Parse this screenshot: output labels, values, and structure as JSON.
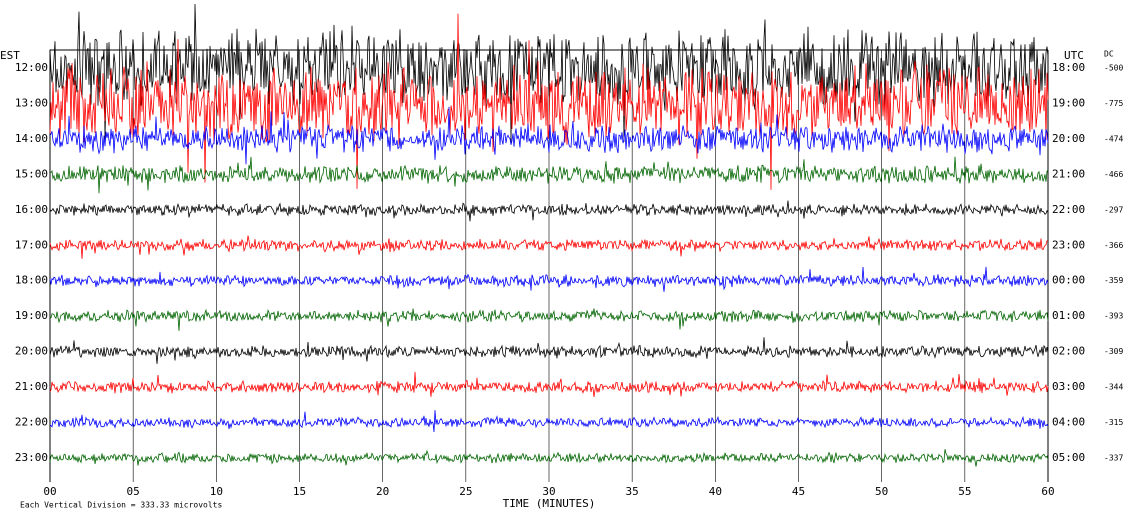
{
  "plot": {
    "left_title": "EST",
    "right_title": "UTC",
    "right_extra": "DC",
    "rows": [
      {
        "est": "12:00",
        "utc": "18:00",
        "dc": -500,
        "color": "#000000"
      },
      {
        "est": "13:00",
        "utc": "19:00",
        "dc": -775,
        "color": "#ff0000"
      },
      {
        "est": "14:00",
        "utc": "20:00",
        "dc": -474,
        "color": "#0000ff"
      },
      {
        "est": "15:00",
        "utc": "21:00",
        "dc": -466,
        "color": "#006400"
      },
      {
        "est": "16:00",
        "utc": "22:00",
        "dc": -297,
        "color": "#000000"
      },
      {
        "est": "17:00",
        "utc": "23:00",
        "dc": -366,
        "color": "#ff0000"
      },
      {
        "est": "18:00",
        "utc": "00:00",
        "dc": -359,
        "color": "#0000ff"
      },
      {
        "est": "19:00",
        "utc": "01:00",
        "dc": -393,
        "color": "#006400"
      },
      {
        "est": "20:00",
        "utc": "02:00",
        "dc": -309,
        "color": "#000000"
      },
      {
        "est": "21:00",
        "utc": "03:00",
        "dc": -344,
        "color": "#ff0000"
      },
      {
        "est": "22:00",
        "utc": "04:00",
        "dc": -315,
        "color": "#0000ff"
      },
      {
        "est": "23:00",
        "utc": "05:00",
        "dc": -337,
        "color": "#006400"
      }
    ],
    "x_ticks": [
      "00",
      "05",
      "10",
      "15",
      "20",
      "25",
      "30",
      "35",
      "40",
      "45",
      "50",
      "55",
      "60"
    ],
    "x_label": "TIME (MINUTES)",
    "footer": "Each Vertical Division =  333.33 microvolts"
  }
}
